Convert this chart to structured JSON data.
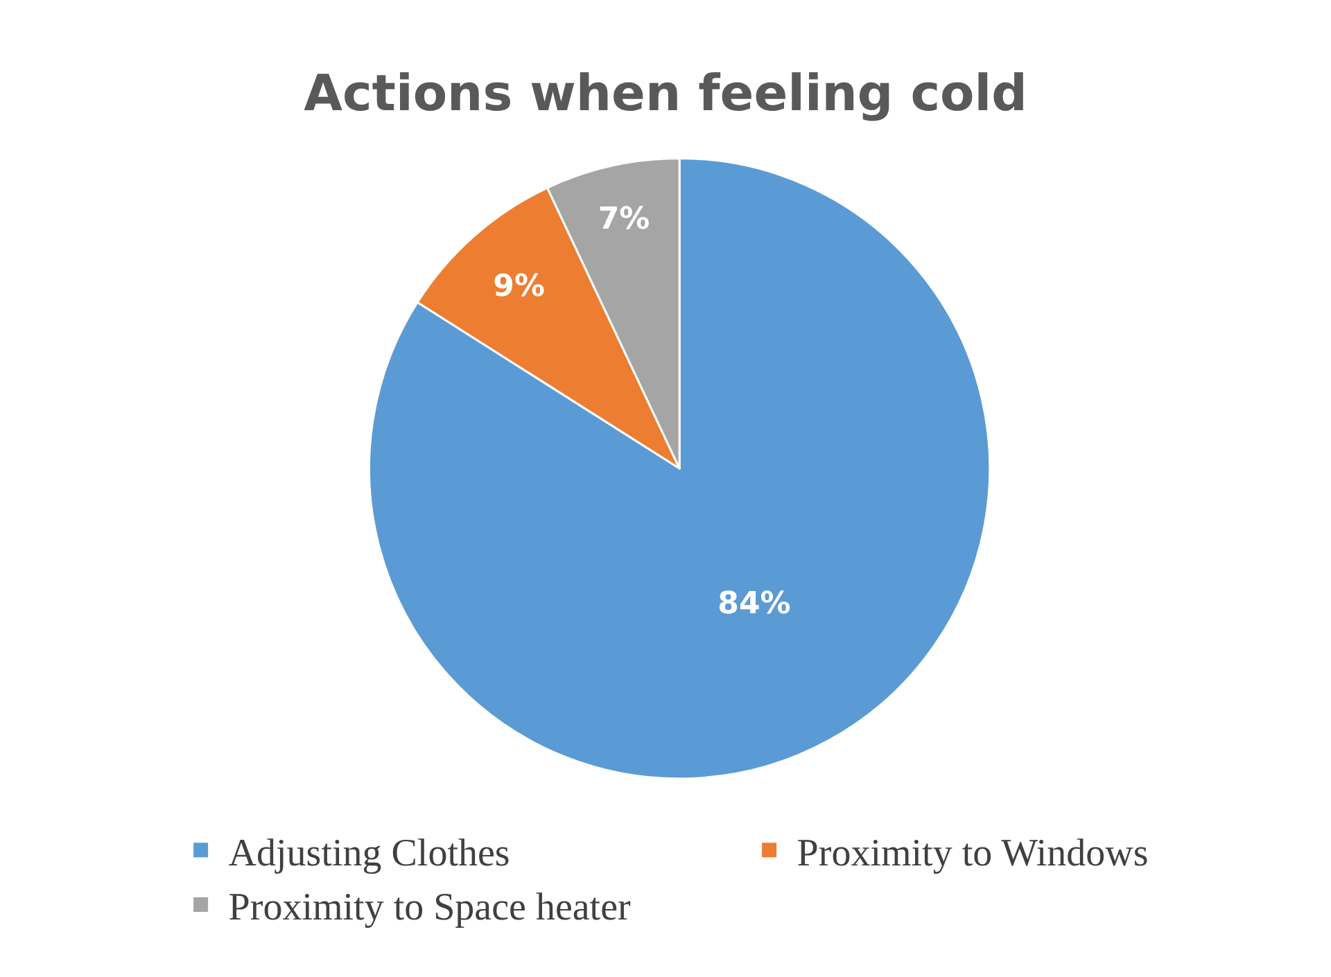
{
  "chart_data": {
    "type": "pie",
    "title": "Actions when feeling cold",
    "categories": [
      "Adjusting Clothes",
      "Proximity to Windows",
      "Proximity to Space heater"
    ],
    "values": [
      84,
      9,
      7
    ],
    "colors": [
      "#5b9bd5",
      "#ed7d31",
      "#a5a5a5"
    ],
    "value_labels": [
      "84%",
      "9%",
      "7%"
    ],
    "legend": "bottom"
  }
}
